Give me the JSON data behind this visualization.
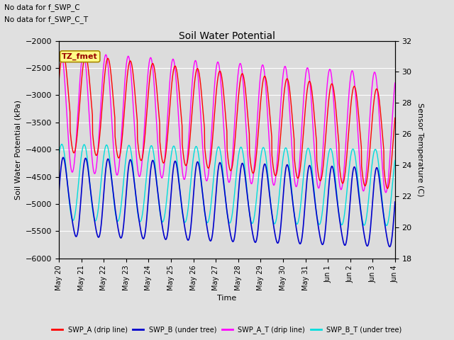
{
  "title": "Soil Water Potential",
  "subtitle1": "No data for f_SWP_C",
  "subtitle2": "No data for f_SWP_C_T",
  "annotation": "TZ_fmet",
  "xlabel": "Time",
  "ylabel_left": "Soil Water Potential (kPa)",
  "ylabel_right": "Sensor Temperature (C)",
  "ylim_left": [
    -6000,
    -2000
  ],
  "ylim_right": [
    18,
    32
  ],
  "yticks_left": [
    -6000,
    -5500,
    -5000,
    -4500,
    -4000,
    -3500,
    -3000,
    -2500,
    -2000
  ],
  "yticks_right": [
    18,
    20,
    22,
    24,
    26,
    28,
    30,
    32
  ],
  "colors": {
    "SWP_A": "#FF0000",
    "SWP_B": "#0000CC",
    "SWP_A_T": "#FF00FF",
    "SWP_B_T": "#00DDDD"
  },
  "legend_labels": [
    "SWP_A (drip line)",
    "SWP_B (under tree)",
    "SWP_A_T (drip line)",
    "SWP_B_T (under tree)"
  ],
  "background_color": "#E0E0E0",
  "plot_bg_color": "#DCDCDC",
  "n_days": 15,
  "num_points": 1500
}
